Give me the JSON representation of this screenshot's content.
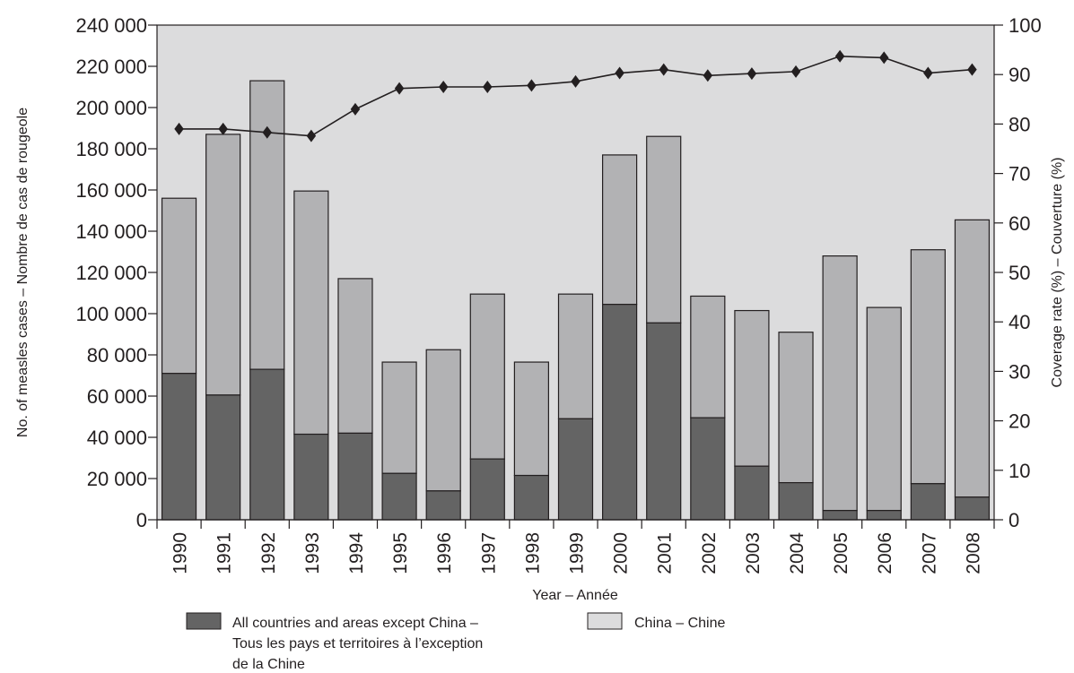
{
  "chart_data": {
    "type": "bar",
    "stacked": true,
    "xlabel": "Year – Année",
    "ylabel": "No. of measles cases – Nombre de cas de rougeole",
    "y2label": "Coverage rate (%) – Couverture (%)",
    "ylim": [
      0,
      240000
    ],
    "y2lim": [
      0,
      100
    ],
    "yticks": [
      "0",
      "20 000",
      "40 000",
      "60 000",
      "80 000",
      "100 000",
      "120 000",
      "140 000",
      "160 000",
      "180 000",
      "200 000",
      "220 000",
      "240 000"
    ],
    "y2ticks": [
      "0",
      "10",
      "20",
      "30",
      "40",
      "50",
      "60",
      "70",
      "80",
      "90",
      "100"
    ],
    "categories": [
      "1990",
      "1991",
      "1992",
      "1993",
      "1994",
      "1995",
      "1996",
      "1997",
      "1998",
      "1999",
      "2000",
      "2001",
      "2002",
      "2003",
      "2004",
      "2005",
      "2006",
      "2007",
      "2008"
    ],
    "series": [
      {
        "kind": "bar",
        "legend_lines": [
          "All countries and areas except China –",
          "Tous les pays et territoires à l’exception",
          "de la Chine"
        ],
        "color": "#646464",
        "values": [
          71000,
          60500,
          73000,
          41500,
          42000,
          22500,
          14000,
          29500,
          21500,
          49000,
          104500,
          95500,
          49500,
          26000,
          18000,
          4500,
          4500,
          17500,
          11000
        ]
      },
      {
        "kind": "bar",
        "legend_lines": [
          "China – Chine"
        ],
        "color": "#b2b2b4",
        "values": [
          85000,
          126500,
          140000,
          118000,
          75000,
          54000,
          68500,
          80000,
          55000,
          60500,
          72500,
          90500,
          59000,
          75500,
          73000,
          123500,
          98500,
          113500,
          134500
        ]
      },
      {
        "kind": "line",
        "axis": "right",
        "color": "#231f20",
        "values": [
          79,
          79,
          78.3,
          77.6,
          83,
          87.2,
          87.5,
          87.5,
          87.8,
          88.6,
          90.3,
          91,
          89.8,
          90.2,
          90.6,
          93.7,
          93.4,
          90.3,
          91
        ]
      }
    ],
    "plot_background": "#dcdcdd",
    "grid": false,
    "legend_position": "bottom"
  }
}
